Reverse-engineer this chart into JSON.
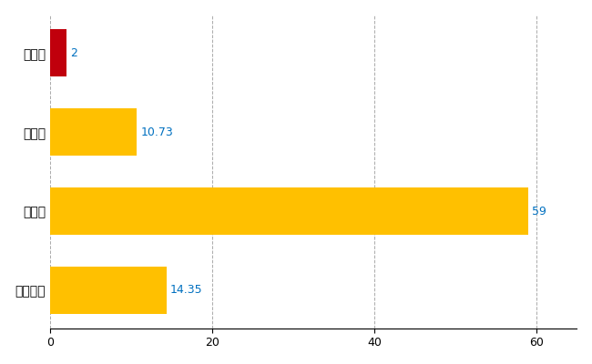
{
  "categories": [
    "平泉町",
    "県平均",
    "県最大",
    "全国平均"
  ],
  "values": [
    2,
    10.73,
    59,
    14.35
  ],
  "bar_colors": [
    "#C0000C",
    "#FFC000",
    "#FFC000",
    "#FFC000"
  ],
  "value_labels": [
    "2",
    "10.73",
    "59",
    "14.35"
  ],
  "xlim": [
    0,
    65
  ],
  "xticks": [
    0,
    20,
    40,
    60
  ],
  "background_color": "#FFFFFF",
  "grid_color": "#AAAAAA",
  "label_color": "#0070C0",
  "bar_height": 0.6
}
